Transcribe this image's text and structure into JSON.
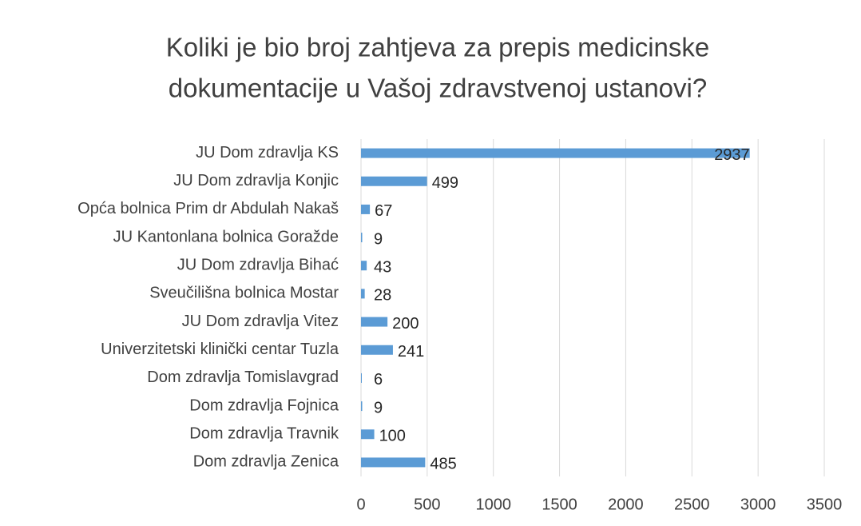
{
  "chart_data": {
    "type": "bar",
    "orientation": "horizontal",
    "title": [
      "Koliki je bio broj zahtjeva za prepis medicinske",
      "dokumentacije u Vašoj zdravstvenoj ustanovi?"
    ],
    "categories": [
      "JU Dom zdravlja KS",
      "JU Dom zdravlja Konjic",
      "Opća bolnica Prim dr Abdulah Nakaš",
      "JU Kantonlana bolnica Goražde",
      "JU Dom zdravlja Bihać",
      "Sveučilišna bolnica Mostar",
      "JU Dom zdravlja Vitez",
      "Univerzitetski klinički centar Tuzla",
      "Dom zdravlja Tomislavgrad",
      "Dom zdravlja Fojnica",
      "Dom zdravlja Travnik",
      "Dom zdravlja Zenica"
    ],
    "values": [
      2937,
      499,
      67,
      9,
      43,
      28,
      200,
      241,
      6,
      9,
      100,
      485
    ],
    "color": "#5b9bd5",
    "xlim": [
      0,
      3500
    ],
    "xticks": [
      0,
      500,
      1000,
      1500,
      2000,
      2500,
      3000,
      3500
    ],
    "grid": true
  }
}
